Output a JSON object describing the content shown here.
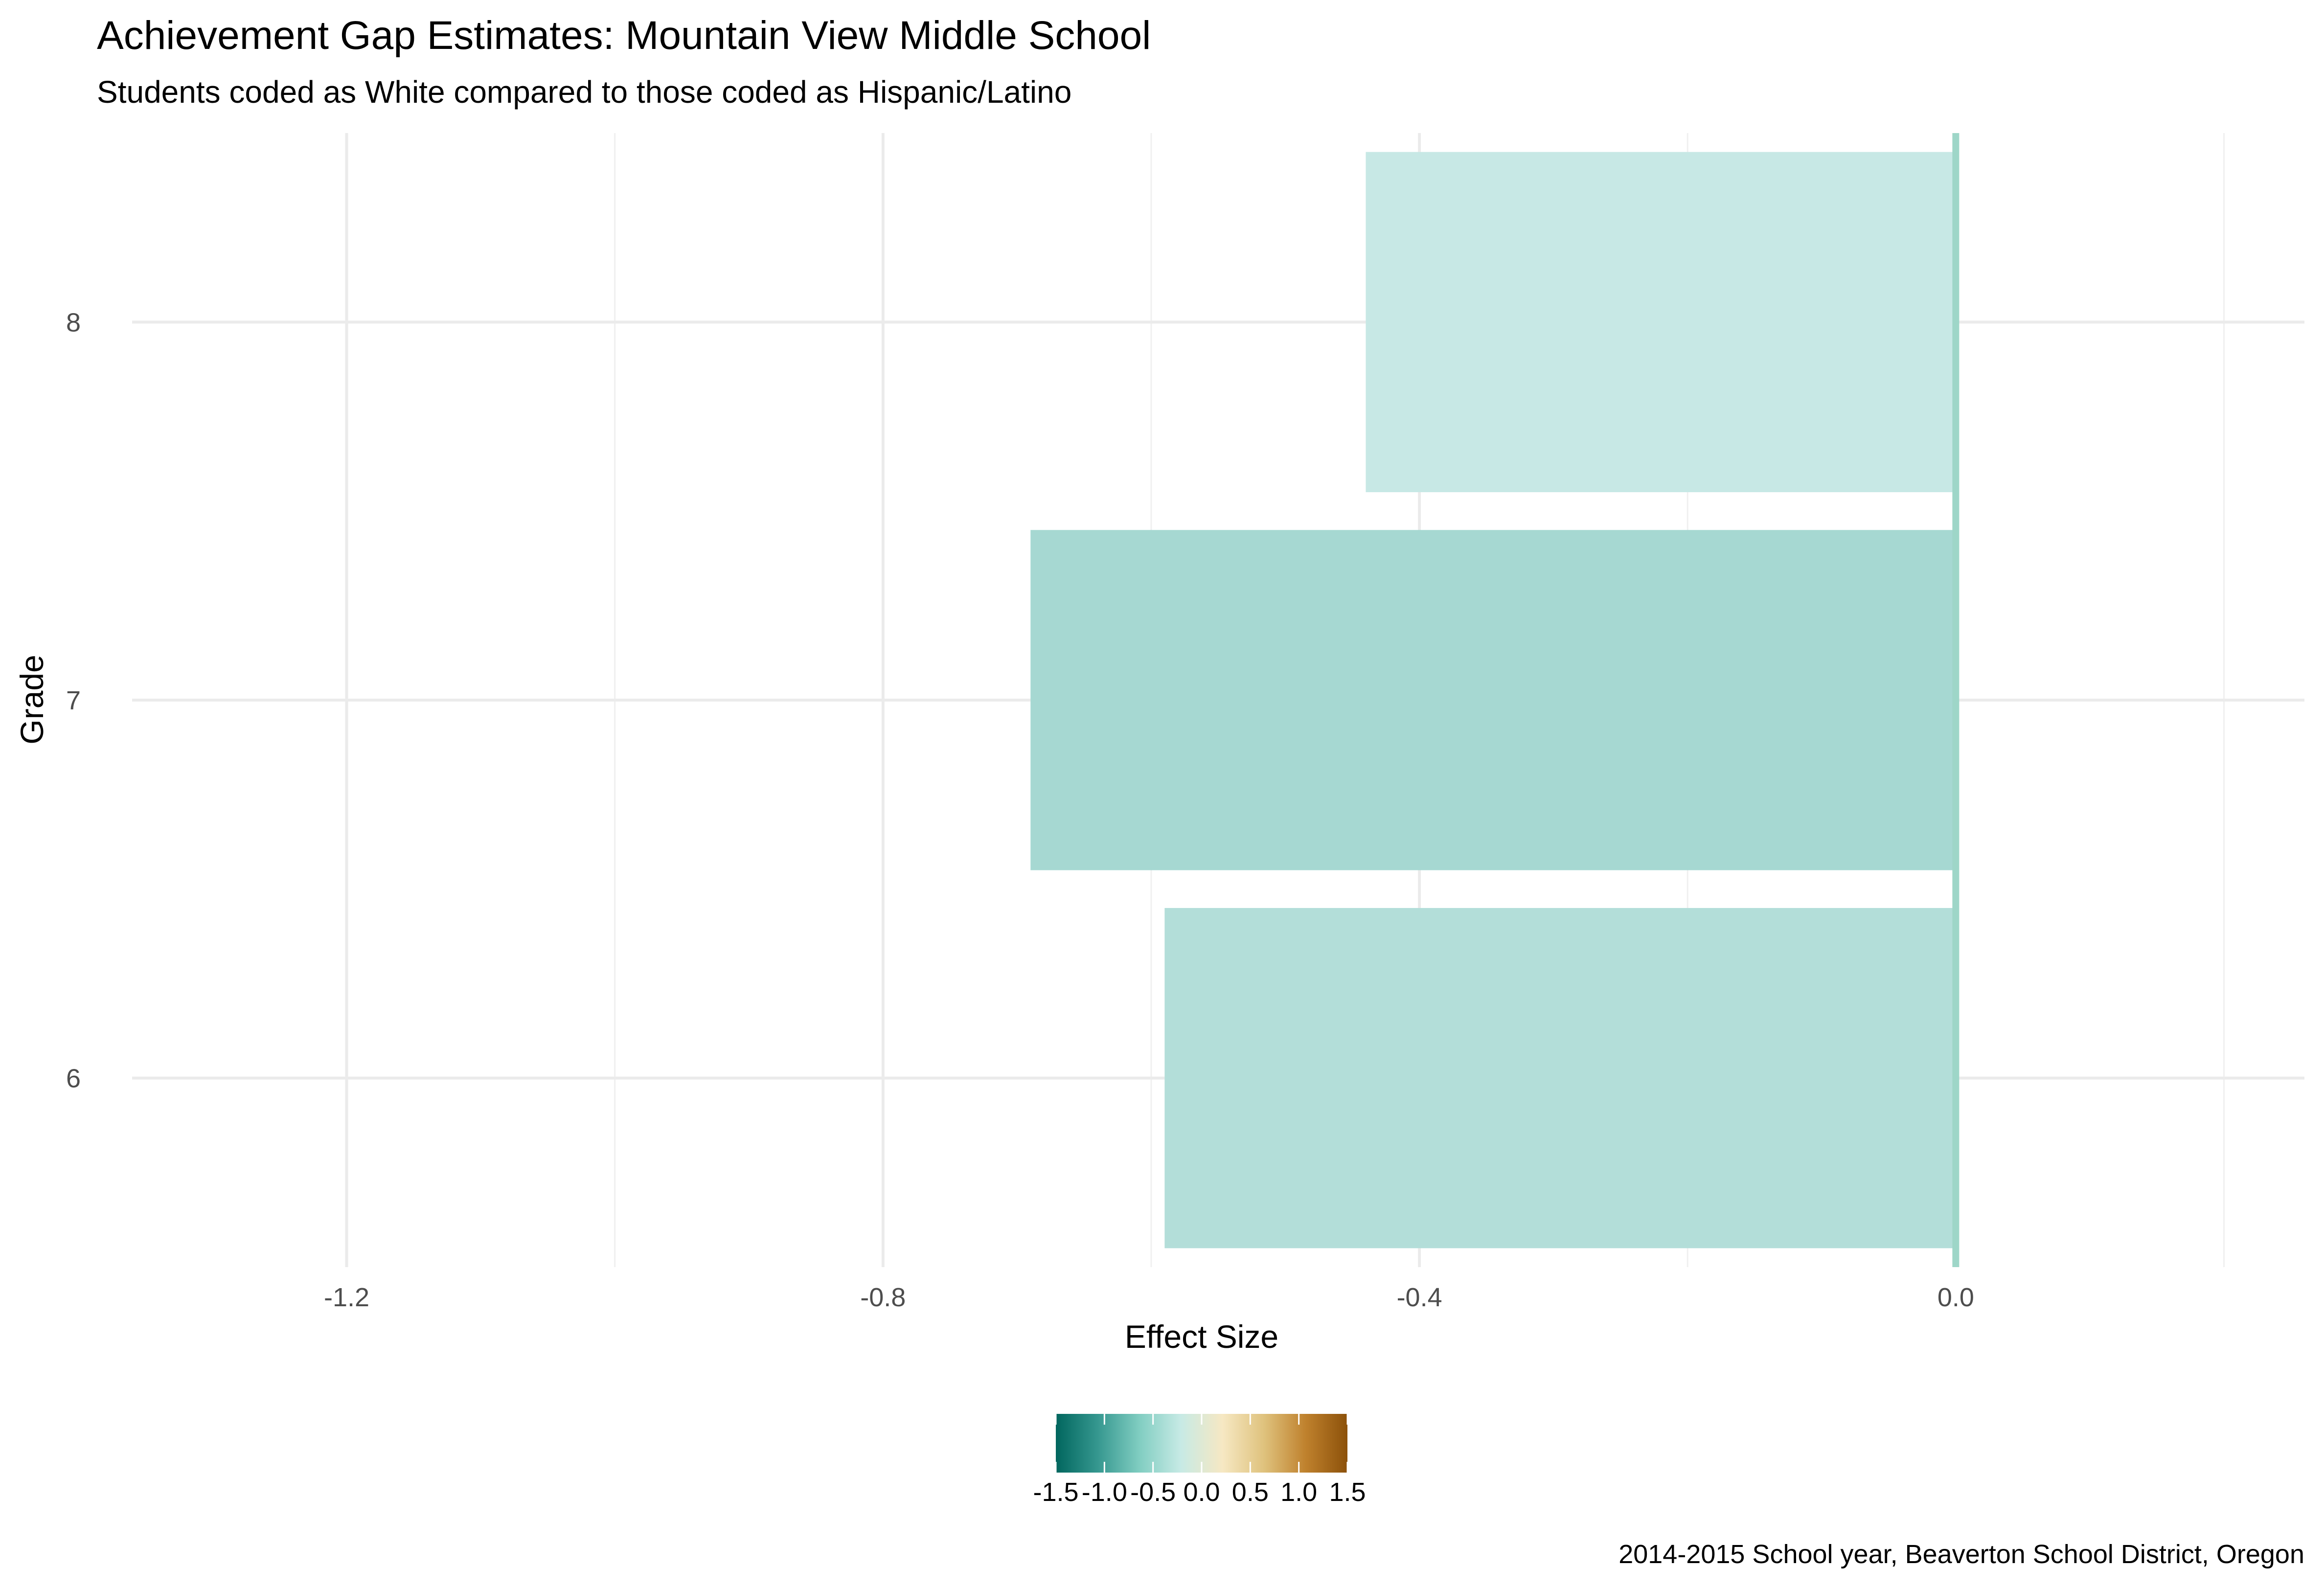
{
  "chart_data": {
    "type": "bar",
    "orientation": "horizontal",
    "title": "Achievement Gap Estimates: Mountain View Middle School",
    "subtitle": "Students coded as White compared to those coded as Hispanic/Latino",
    "xlabel": "Effect Size",
    "ylabel": "Grade",
    "caption": "2014-2015 School year, Beaverton School District, Oregon",
    "categories": [
      "6",
      "7",
      "8"
    ],
    "values": [
      -0.59,
      -0.69,
      -0.44
    ],
    "bar_colors": [
      "#b3ded9",
      "#a6d8d2",
      "#c7e8e5"
    ],
    "xlim": [
      -1.36,
      0.26
    ],
    "xticks": [
      -1.2,
      -0.8,
      -0.4,
      0.0
    ],
    "xtick_labels": [
      "-1.2",
      "-0.8",
      "-0.4",
      "0.0"
    ],
    "grid": true,
    "reference_line": {
      "x": 0,
      "color": "#9ed6c8"
    },
    "legend": {
      "type": "colorbar",
      "placement": "bottom",
      "range": [
        -1.5,
        1.5
      ],
      "ticks": [
        -1.5,
        -1.0,
        -0.5,
        0.0,
        0.5,
        1.0,
        1.5
      ],
      "tick_labels": [
        "-1.5",
        "-1.0",
        "-0.5",
        "0.0",
        "0.5",
        "1.0",
        "1.5"
      ],
      "colors": [
        "#01665e",
        "#35978f",
        "#80cdc1",
        "#c7eae5",
        "#f6e8c3",
        "#dfc27d",
        "#bf812d",
        "#8c510a"
      ]
    }
  }
}
